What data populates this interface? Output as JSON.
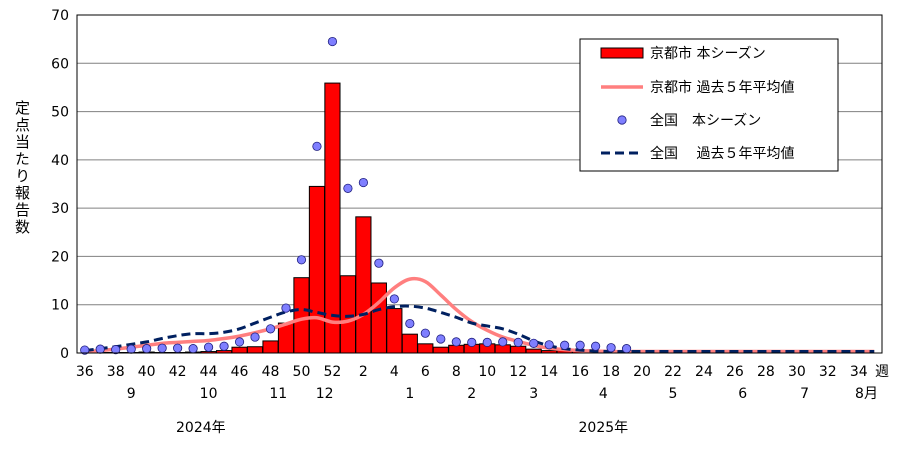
{
  "chart_data": {
    "type": "bar",
    "ylabel": "定点当たり報告数",
    "ylim": [
      0,
      70
    ],
    "yticks": [
      0,
      10,
      20,
      30,
      40,
      50,
      60,
      70
    ],
    "grid": true,
    "legend_position": "top-right",
    "x_unit": "週",
    "week_ticks": [
      "36",
      "38",
      "40",
      "42",
      "44",
      "46",
      "48",
      "50",
      "52",
      "2",
      "4",
      "6",
      "8",
      "10",
      "12",
      "14",
      "16",
      "18",
      "20",
      "22",
      "24",
      "26",
      "28",
      "30",
      "32",
      "34"
    ],
    "month_labels": [
      "9",
      "10",
      "11",
      "12",
      "1",
      "2",
      "3",
      "4",
      "5",
      "6",
      "7",
      "8月"
    ],
    "year_labels": [
      "2024年",
      "2025年"
    ],
    "legend": {
      "kyoto_current": "京都市 本シーズン",
      "kyoto_avg": "京都市 過去５年平均値",
      "national_current": "全国　本シーズン",
      "national_avg": "全国　 過去５年平均値"
    },
    "colors": {
      "kyoto_bar": "#ff0000",
      "kyoto_avg_line": "#ff7f7f",
      "national_marker": "#7f7fff",
      "national_avg_line": "#002060"
    },
    "x": [
      "36",
      "37",
      "38",
      "39",
      "40",
      "41",
      "42",
      "43",
      "44",
      "45",
      "46",
      "47",
      "48",
      "49",
      "50",
      "51",
      "52",
      "1",
      "2",
      "3",
      "4",
      "5",
      "6",
      "7",
      "8",
      "9",
      "10",
      "11",
      "12",
      "13",
      "14",
      "15",
      "16",
      "17",
      "18",
      "19",
      "20",
      "21",
      "22",
      "23",
      "24",
      "25",
      "26",
      "27",
      "28",
      "29",
      "30",
      "31",
      "32",
      "33",
      "34",
      "35"
    ],
    "series": [
      {
        "name": "京都市 本シーズン",
        "kind": "bar",
        "values": [
          0,
          0.1,
          0.1,
          0.1,
          0.2,
          0.1,
          0.1,
          0.2,
          0.3,
          0.5,
          1.2,
          1.3,
          2.5,
          6.2,
          15.6,
          34.5,
          55.9,
          16.0,
          28.2,
          14.5,
          9.2,
          3.9,
          1.9,
          1.2,
          1.6,
          1.8,
          1.9,
          1.7,
          1.4,
          0.8,
          0.5,
          0.5,
          0.4,
          0.3,
          0.2,
          null,
          null,
          null,
          null,
          null,
          null,
          null,
          null,
          null,
          null,
          null,
          null,
          null,
          null,
          null,
          null,
          null
        ]
      },
      {
        "name": "京都市 過去５年平均値",
        "kind": "line",
        "values": [
          0.3,
          0.5,
          0.8,
          1.2,
          1.6,
          2.0,
          2.2,
          2.4,
          2.6,
          3.0,
          3.5,
          4.2,
          5.0,
          6.0,
          7.0,
          7.3,
          6.4,
          6.6,
          8.0,
          10.5,
          13.5,
          15.3,
          14.8,
          12.0,
          9.0,
          6.5,
          4.7,
          3.3,
          2.4,
          1.6,
          1.0,
          0.7,
          0.5,
          0.4,
          0.3,
          0.3,
          0.3,
          0.3,
          0.3,
          0.3,
          0.3,
          0.3,
          0.3,
          0.3,
          0.3,
          0.3,
          0.3,
          0.3,
          0.3,
          0.3,
          0.3,
          0.3
        ]
      },
      {
        "name": "全国　本シーズン",
        "kind": "scatter",
        "values": [
          0.6,
          0.8,
          0.7,
          0.8,
          0.9,
          1.0,
          1.0,
          0.9,
          1.2,
          1.4,
          2.3,
          3.3,
          5.0,
          9.3,
          19.3,
          42.8,
          64.5,
          34.1,
          35.3,
          18.6,
          11.2,
          6.1,
          4.1,
          2.9,
          2.3,
          2.2,
          2.2,
          2.3,
          2.2,
          2.0,
          1.7,
          1.6,
          1.6,
          1.4,
          1.1,
          0.9,
          null,
          null,
          null,
          null,
          null,
          null,
          null,
          null,
          null,
          null,
          null,
          null,
          null,
          null,
          null,
          null
        ]
      },
      {
        "name": "全国　 過去５年平均値",
        "kind": "line",
        "values": [
          0.5,
          0.9,
          1.3,
          1.8,
          2.3,
          3.0,
          3.6,
          4.0,
          4.0,
          4.3,
          5.0,
          6.2,
          7.4,
          8.5,
          9.0,
          8.4,
          7.8,
          7.6,
          8.0,
          9.0,
          9.6,
          9.7,
          9.3,
          8.4,
          7.4,
          6.2,
          5.6,
          5.0,
          3.9,
          2.5,
          1.5,
          0.9,
          0.6,
          0.4,
          0.3,
          0.3,
          0.3,
          0.3,
          0.3,
          0.3,
          0.3,
          0.3,
          0.3,
          0.3,
          0.3,
          0.3,
          0.3,
          0.3,
          0.3,
          0.3,
          0.3,
          0.3
        ]
      }
    ]
  }
}
